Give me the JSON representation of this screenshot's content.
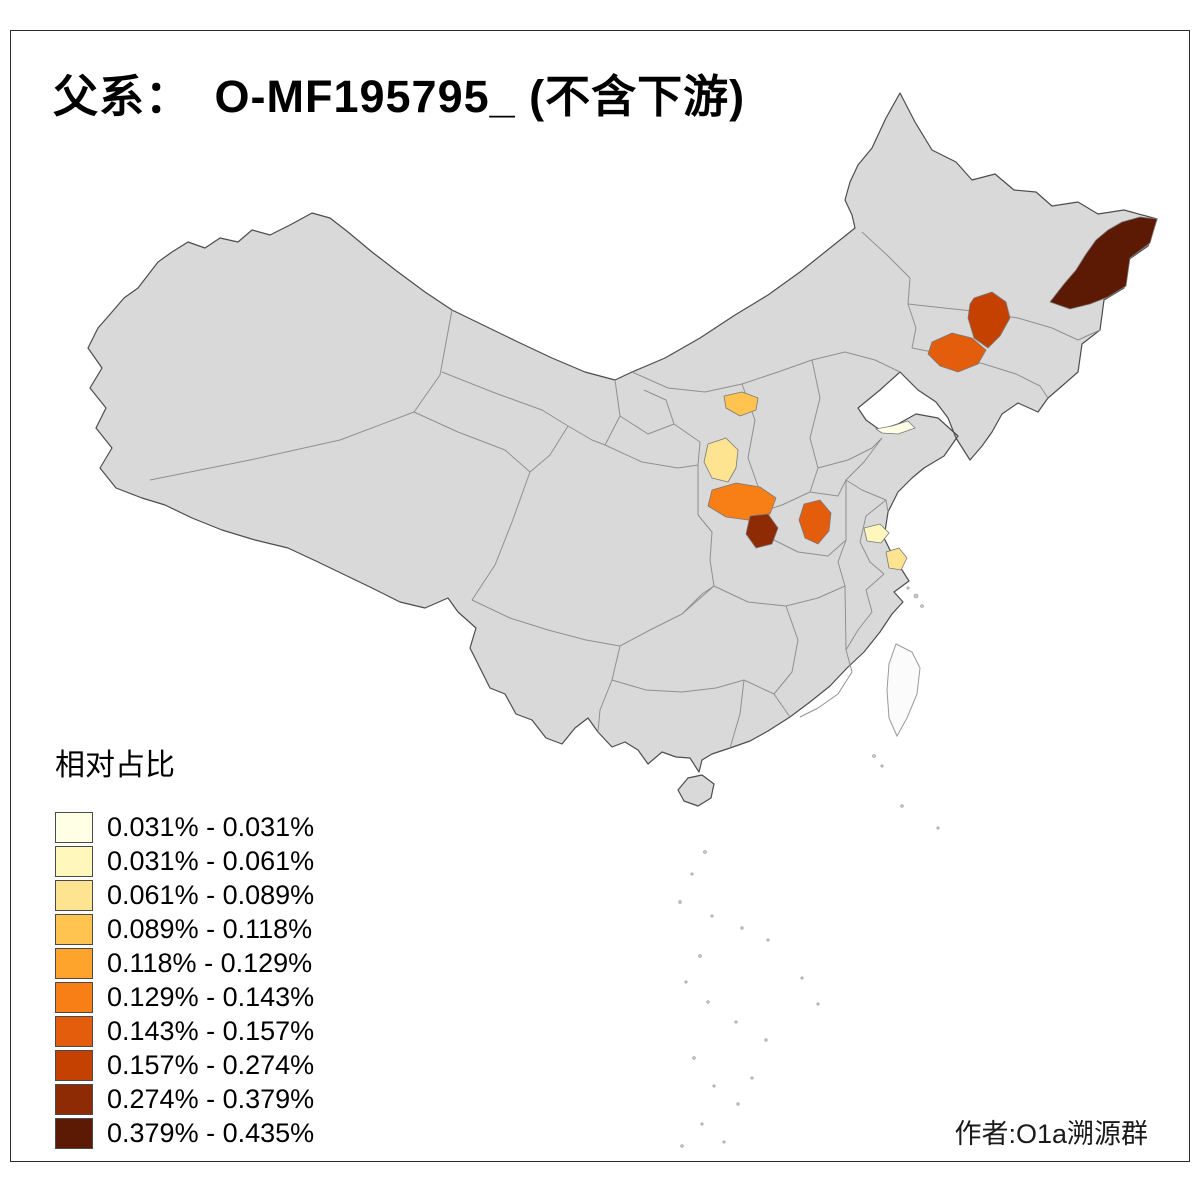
{
  "title": "父系：　O-MF195795_ (不含下游)",
  "legend": {
    "title": "相对占比",
    "classes": [
      {
        "label": "0.031% - 0.031%",
        "color": "#FFFFE5"
      },
      {
        "label": "0.031% - 0.061%",
        "color": "#FFF7BC"
      },
      {
        "label": "0.061% - 0.089%",
        "color": "#FEE391"
      },
      {
        "label": "0.089% - 0.118%",
        "color": "#FEC44F"
      },
      {
        "label": "0.118% - 0.129%",
        "color": "#FEA32B"
      },
      {
        "label": "0.129% - 0.143%",
        "color": "#F87E16"
      },
      {
        "label": "0.143% - 0.157%",
        "color": "#E35D0C"
      },
      {
        "label": "0.157% - 0.274%",
        "color": "#C54102"
      },
      {
        "label": "0.274% - 0.379%",
        "color": "#8E2A04"
      },
      {
        "label": "0.379% - 0.435%",
        "color": "#5C1A05"
      }
    ]
  },
  "map": {
    "base_fill": "#d9d9d9",
    "border_color": "#4d4d4d",
    "province_line_color": "#909090",
    "regions": [
      {
        "name": "northeast-heilongjiang-region",
        "class_index": 9
      },
      {
        "name": "liaoning-north-region",
        "class_index": 7
      },
      {
        "name": "liaoning-south-region",
        "class_index": 6
      },
      {
        "name": "north-shaanxi-region",
        "class_index": 3
      },
      {
        "name": "central-shaanxi-region",
        "class_index": 2
      },
      {
        "name": "south-shaanxi-region",
        "class_index": 5
      },
      {
        "name": "northwest-hubei-region",
        "class_index": 8
      },
      {
        "name": "southwest-henan-region",
        "class_index": 6
      },
      {
        "name": "central-anhui-region",
        "class_index": 1
      },
      {
        "name": "jiangsu-coast-region",
        "class_index": 2
      },
      {
        "name": "shandong-peninsula-region",
        "class_index": 0
      }
    ]
  },
  "credit": "作者:O1a溯源群"
}
